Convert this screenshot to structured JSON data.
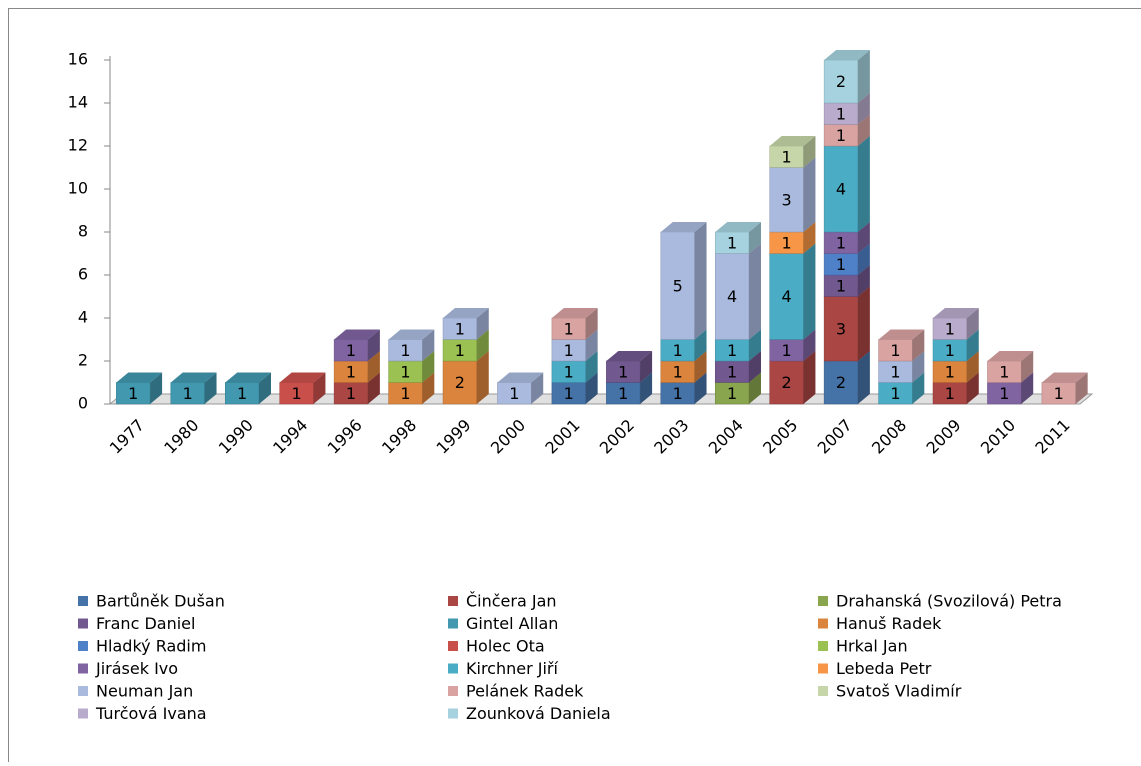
{
  "chart_data": {
    "type": "bar3d_stacked",
    "categories": [
      "1977",
      "1980",
      "1990",
      "1994",
      "1996",
      "1998",
      "1999",
      "2000",
      "2001",
      "2002",
      "2003",
      "2004",
      "2005",
      "2007",
      "2008",
      "2009",
      "2010",
      "2011"
    ],
    "ylim": [
      0,
      16
    ],
    "yticks": [
      0,
      2,
      4,
      6,
      8,
      10,
      12,
      14,
      16
    ],
    "legend": "bottom",
    "series": [
      {
        "name": "Bartůněk Dušan",
        "color": "#4572a7",
        "values": [
          null,
          null,
          null,
          null,
          null,
          null,
          null,
          null,
          1,
          1,
          1,
          null,
          null,
          2,
          null,
          null,
          null,
          null
        ]
      },
      {
        "name": "Činčera Jan",
        "color": "#aa4643",
        "values": [
          null,
          null,
          null,
          null,
          1,
          null,
          null,
          null,
          null,
          null,
          null,
          null,
          2,
          3,
          null,
          1,
          null,
          null
        ]
      },
      {
        "name": "Drahanská (Svozilová) Petra",
        "color": "#89a54e",
        "values": [
          null,
          null,
          null,
          null,
          null,
          null,
          null,
          null,
          null,
          null,
          null,
          1,
          null,
          null,
          null,
          null,
          null,
          null
        ]
      },
      {
        "name": "Franc Daniel",
        "color": "#71588f",
        "values": [
          null,
          null,
          null,
          null,
          null,
          null,
          null,
          null,
          null,
          1,
          null,
          1,
          null,
          1,
          null,
          null,
          null,
          null
        ]
      },
      {
        "name": "Gintel Allan",
        "color": "#4198af",
        "values": [
          1,
          1,
          1,
          null,
          null,
          null,
          null,
          null,
          null,
          null,
          null,
          null,
          null,
          null,
          null,
          null,
          null,
          null
        ]
      },
      {
        "name": "Hanuš Radek",
        "color": "#db843d",
        "values": [
          null,
          null,
          null,
          null,
          1,
          1,
          2,
          null,
          null,
          null,
          1,
          null,
          null,
          null,
          null,
          1,
          null,
          null
        ]
      },
      {
        "name": "Hladký Radim",
        "color": "#4f81c9",
        "values": [
          null,
          null,
          null,
          null,
          null,
          null,
          null,
          null,
          null,
          null,
          null,
          null,
          null,
          1,
          null,
          null,
          null,
          null
        ]
      },
      {
        "name": "Holec Ota",
        "color": "#c94f4b",
        "values": [
          null,
          null,
          null,
          1,
          null,
          null,
          null,
          null,
          null,
          null,
          null,
          null,
          null,
          null,
          null,
          null,
          null,
          null
        ]
      },
      {
        "name": "Hrkal Jan",
        "color": "#9bc152",
        "values": [
          null,
          null,
          null,
          null,
          null,
          1,
          1,
          null,
          null,
          null,
          null,
          null,
          null,
          null,
          null,
          null,
          null,
          null
        ]
      },
      {
        "name": "Jirásek Ivo",
        "color": "#8064a2",
        "values": [
          null,
          null,
          null,
          null,
          1,
          null,
          null,
          null,
          null,
          null,
          null,
          null,
          1,
          1,
          null,
          null,
          1,
          null
        ]
      },
      {
        "name": "Kirchner Jiří",
        "color": "#4bacc6",
        "values": [
          null,
          null,
          null,
          null,
          null,
          null,
          null,
          null,
          1,
          null,
          1,
          1,
          4,
          4,
          1,
          1,
          null,
          null
        ]
      },
      {
        "name": "Lebeda Petr",
        "color": "#f79646",
        "values": [
          null,
          null,
          null,
          null,
          null,
          null,
          null,
          null,
          null,
          null,
          null,
          null,
          1,
          null,
          null,
          null,
          null,
          null
        ]
      },
      {
        "name": "Neuman Jan",
        "color": "#aabadf",
        "values": [
          null,
          null,
          null,
          null,
          null,
          1,
          1,
          1,
          1,
          null,
          5,
          4,
          3,
          null,
          1,
          null,
          null,
          null
        ]
      },
      {
        "name": "Pelánek Radek",
        "color": "#d9a3a2",
        "values": [
          null,
          null,
          null,
          null,
          null,
          null,
          null,
          null,
          1,
          null,
          null,
          null,
          null,
          1,
          1,
          null,
          1,
          1
        ]
      },
      {
        "name": "Svatoš Vladimír",
        "color": "#c6d6a8",
        "values": [
          null,
          null,
          null,
          null,
          null,
          null,
          null,
          null,
          null,
          null,
          null,
          null,
          1,
          null,
          null,
          null,
          null,
          null
        ]
      },
      {
        "name": "Turčová Ivana",
        "color": "#b8abcb",
        "values": [
          null,
          null,
          null,
          null,
          null,
          null,
          null,
          null,
          null,
          null,
          null,
          null,
          null,
          1,
          null,
          1,
          null,
          null
        ]
      },
      {
        "name": "Zounková Daniela",
        "color": "#a5d2de",
        "values": [
          null,
          null,
          null,
          null,
          null,
          null,
          null,
          null,
          null,
          null,
          null,
          1,
          null,
          2,
          null,
          null,
          null,
          null
        ]
      }
    ]
  }
}
